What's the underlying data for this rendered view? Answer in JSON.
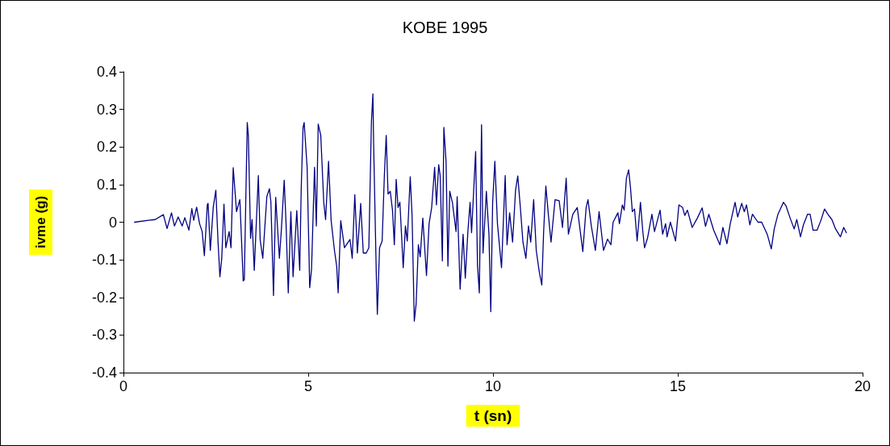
{
  "chart_data": {
    "type": "line",
    "title": "KOBE 1995",
    "xlabel": "t (sn)",
    "ylabel": "ivme (g)",
    "xlim": [
      0,
      20
    ],
    "xticks": [
      0,
      5,
      10,
      15,
      20
    ],
    "ylim": [
      -0.4,
      0.4
    ],
    "yticks": [
      -0.4,
      -0.3,
      -0.2,
      -0.1,
      0,
      0.1,
      0.2,
      0.3,
      0.4
    ],
    "marker": "none",
    "line_style": "solid",
    "x": [
      0.3,
      0.68,
      0.86,
      1.08,
      1.18,
      1.3,
      1.38,
      1.48,
      1.59,
      1.66,
      1.77,
      1.85,
      1.9,
      1.98,
      2.06,
      2.13,
      2.19,
      2.27,
      2.29,
      2.35,
      2.43,
      2.5,
      2.56,
      2.61,
      2.66,
      2.72,
      2.77,
      2.86,
      2.91,
      2.97,
      3.06,
      3.15,
      3.24,
      3.27,
      3.35,
      3.38,
      3.44,
      3.48,
      3.54,
      3.65,
      3.7,
      3.77,
      3.88,
      3.95,
      3.99,
      4.06,
      4.12,
      4.22,
      4.27,
      4.35,
      4.4,
      4.46,
      4.53,
      4.59,
      4.69,
      4.77,
      4.81,
      4.86,
      4.89,
      4.97,
      5.04,
      5.09,
      5.17,
      5.22,
      5.27,
      5.34,
      5.42,
      5.47,
      5.55,
      5.62,
      5.71,
      5.77,
      5.81,
      5.88,
      5.98,
      6.13,
      6.19,
      6.26,
      6.33,
      6.42,
      6.49,
      6.57,
      6.64,
      6.71,
      6.75,
      6.77,
      6.84,
      6.87,
      6.93,
      7.0,
      7.06,
      7.11,
      7.16,
      7.22,
      7.28,
      7.33,
      7.38,
      7.43,
      7.48,
      7.57,
      7.63,
      7.68,
      7.76,
      7.81,
      7.87,
      7.92,
      7.98,
      8.03,
      8.1,
      8.2,
      8.27,
      8.34,
      8.42,
      8.47,
      8.53,
      8.57,
      8.63,
      8.67,
      8.73,
      8.78,
      8.83,
      8.9,
      9.0,
      9.03,
      9.11,
      9.19,
      9.25,
      9.32,
      9.38,
      9.42,
      9.49,
      9.53,
      9.58,
      9.63,
      9.69,
      9.73,
      9.82,
      9.89,
      9.94,
      9.99,
      10.05,
      10.12,
      10.23,
      10.33,
      10.38,
      10.45,
      10.53,
      10.61,
      10.67,
      10.74,
      10.81,
      10.89,
      10.96,
      11.02,
      11.1,
      11.17,
      11.25,
      11.32,
      11.37,
      11.43,
      11.5,
      11.57,
      11.68,
      11.79,
      11.88,
      11.98,
      12.04,
      12.16,
      12.28,
      12.43,
      12.52,
      12.57,
      12.66,
      12.77,
      12.87,
      12.99,
      13.1,
      13.19,
      13.25,
      13.38,
      13.42,
      13.5,
      13.55,
      13.61,
      13.67,
      13.72,
      13.77,
      13.83,
      13.9,
      13.99,
      14.05,
      14.1,
      14.18,
      14.3,
      14.37,
      14.52,
      14.59,
      14.67,
      14.71,
      14.8,
      14.94,
      15.03,
      15.13,
      15.19,
      15.26,
      15.39,
      15.53,
      15.66,
      15.75,
      15.84,
      15.97,
      16.14,
      16.22,
      16.33,
      16.42,
      16.55,
      16.62,
      16.73,
      16.8,
      16.86,
      16.95,
      17.02,
      17.17,
      17.27,
      17.42,
      17.53,
      17.61,
      17.71,
      17.86,
      17.93,
      18.04,
      18.15,
      18.22,
      18.32,
      18.4,
      18.51,
      18.58,
      18.66,
      18.77,
      18.87,
      18.97,
      19.06,
      19.17,
      19.27,
      19.4,
      19.49,
      19.56
    ],
    "series": [
      {
        "color": "#000080",
        "values": [
          0,
          0.005,
          0.007,
          0.02,
          -0.017,
          0.025,
          -0.01,
          0.014,
          -0.01,
          0.012,
          -0.021,
          0.036,
          0.005,
          0.04,
          -0.004,
          -0.025,
          -0.089,
          0.047,
          0.05,
          -0.075,
          0.04,
          0.085,
          -0.053,
          -0.145,
          -0.096,
          0.048,
          -0.068,
          -0.025,
          -0.068,
          0.145,
          0.028,
          0.06,
          -0.156,
          -0.153,
          0.265,
          0.23,
          -0.043,
          0.007,
          -0.128,
          0.124,
          -0.047,
          -0.096,
          0.068,
          0.089,
          0.053,
          -0.195,
          0.066,
          -0.096,
          -0.025,
          0.112,
          -0.004,
          -0.188,
          0.028,
          -0.145,
          0.031,
          -0.128,
          0.089,
          0.252,
          0.265,
          0.146,
          -0.174,
          -0.124,
          0.146,
          -0.01,
          0.261,
          0.23,
          0.053,
          0.007,
          0.162,
          0.004,
          -0.075,
          -0.117,
          -0.188,
          0.004,
          -0.068,
          -0.046,
          -0.096,
          0.073,
          -0.082,
          0.05,
          -0.082,
          -0.082,
          -0.068,
          0.267,
          0.341,
          0.206,
          -0.131,
          -0.245,
          -0.068,
          -0.05,
          0.124,
          0.231,
          0.075,
          0.082,
          0.032,
          -0.06,
          0.114,
          0.039,
          0.053,
          -0.121,
          -0.01,
          -0.05,
          0.121,
          0.018,
          -0.263,
          -0.217,
          -0.06,
          -0.092,
          0.011,
          -0.142,
          -0.004,
          0.039,
          0.146,
          0.046,
          0.153,
          0.124,
          -0.103,
          0.252,
          0.16,
          -0.117,
          0.082,
          0.053,
          -0.025,
          0.068,
          -0.178,
          -0.032,
          -0.149,
          -0.025,
          0.053,
          -0.028,
          0.11,
          0.188,
          -0.114,
          -0.188,
          0.259,
          -0.082,
          0.082,
          -0.032,
          -0.238,
          0.053,
          0.162,
          -0.004,
          -0.121,
          0.124,
          -0.06,
          0.025,
          -0.053,
          0.085,
          0.123,
          0.039,
          -0.053,
          -0.096,
          -0.01,
          -0.053,
          0.06,
          -0.075,
          -0.131,
          -0.167,
          -0.025,
          0.096,
          0.018,
          -0.053,
          0.06,
          0.057,
          -0.014,
          0.117,
          -0.032,
          0.021,
          0.039,
          -0.078,
          0.039,
          0.06,
          -0.01,
          -0.075,
          0.028,
          -0.075,
          -0.045,
          -0.06,
          0,
          0.025,
          -0.004,
          0.046,
          0.032,
          0.117,
          0.139,
          0.092,
          0.028,
          0.035,
          -0.05,
          0.053,
          -0.021,
          -0.068,
          -0.043,
          0.021,
          -0.025,
          0.032,
          -0.032,
          -0.004,
          -0.039,
          0,
          -0.05,
          0.046,
          0.039,
          0.018,
          0.032,
          -0.014,
          0.011,
          0.038,
          -0.011,
          0.021,
          -0.021,
          -0.06,
          -0.014,
          -0.057,
          -0.004,
          0.053,
          0.014,
          0.05,
          0.028,
          0.046,
          -0.007,
          0.021,
          0,
          0,
          -0.032,
          -0.071,
          -0.018,
          0.021,
          0.053,
          0.043,
          0.011,
          -0.018,
          0.007,
          -0.039,
          -0.007,
          0.021,
          0.021,
          -0.021,
          -0.021,
          0.004,
          0.035,
          0.021,
          0.007,
          -0.018,
          -0.039,
          -0.014,
          -0.028
        ]
      }
    ]
  }
}
